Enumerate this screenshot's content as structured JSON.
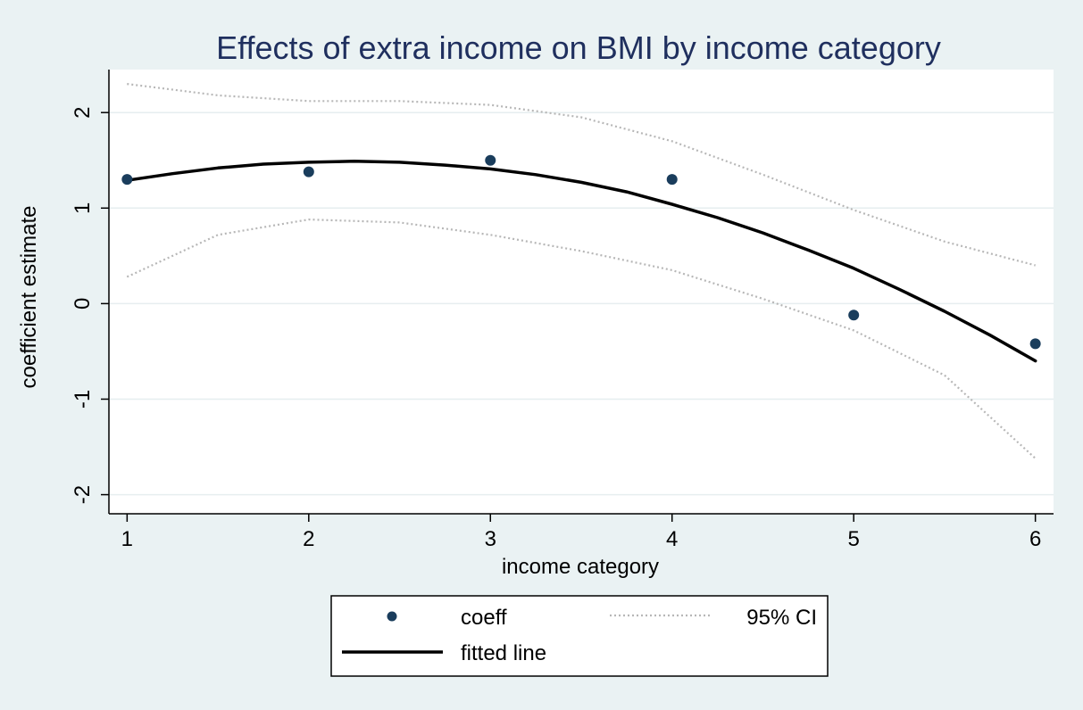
{
  "chart_data": {
    "type": "scatter",
    "title": "Effects of extra income on BMI by income category",
    "xlabel": "income category",
    "ylabel": "coefficient estimate",
    "xlim": [
      0.9,
      6.1
    ],
    "ylim": [
      -2.2,
      2.45
    ],
    "x_ticks": [
      1,
      2,
      3,
      4,
      5,
      6
    ],
    "y_ticks": [
      -2,
      -1,
      0,
      1,
      2
    ],
    "grid": true,
    "legend_position": "bottom",
    "colors": {
      "plot_background": "#ffffff",
      "page_background": "#eaf2f3",
      "grid": "#e6eeef",
      "title": "#1f2f5e",
      "points": "#1a3d5c",
      "fitted_line": "#000000",
      "ci_line": "#b7b7b7"
    },
    "series": [
      {
        "name": "coeff",
        "kind": "points",
        "x": [
          1,
          2,
          3,
          4,
          5,
          6
        ],
        "y": [
          1.3,
          1.38,
          1.5,
          1.3,
          -0.12,
          -0.42
        ]
      },
      {
        "name": "95% CI",
        "kind": "dotted-line",
        "bands": [
          {
            "x": [
              1,
              1.5,
              2,
              2.5,
              3,
              3.5,
              4,
              4.5,
              5,
              5.5,
              6
            ],
            "y": [
              2.3,
              2.18,
              2.12,
              2.12,
              2.08,
              1.95,
              1.7,
              1.35,
              0.98,
              0.65,
              0.4
            ]
          },
          {
            "x": [
              1,
              1.5,
              2,
              2.5,
              3,
              3.5,
              4,
              4.5,
              5,
              5.5,
              6
            ],
            "y": [
              0.28,
              0.72,
              0.88,
              0.85,
              0.72,
              0.55,
              0.35,
              0.05,
              -0.28,
              -0.75,
              -1.62
            ]
          }
        ]
      },
      {
        "name": "fitted line",
        "kind": "solid-line",
        "x": [
          1,
          1.25,
          1.5,
          1.75,
          2,
          2.25,
          2.5,
          2.75,
          3,
          3.25,
          3.5,
          3.75,
          4,
          4.25,
          4.5,
          4.75,
          5,
          5.25,
          5.5,
          5.75,
          6
        ],
        "y": [
          1.29,
          1.36,
          1.42,
          1.46,
          1.48,
          1.49,
          1.48,
          1.45,
          1.41,
          1.35,
          1.27,
          1.17,
          1.04,
          0.9,
          0.74,
          0.56,
          0.37,
          0.15,
          -0.08,
          -0.33,
          -0.6
        ]
      }
    ]
  }
}
